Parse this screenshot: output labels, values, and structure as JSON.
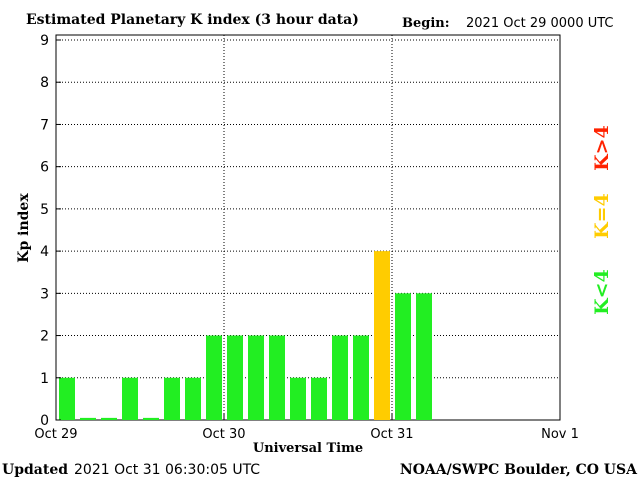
{
  "chart_data": {
    "type": "bar",
    "title": "Estimated Planetary K index (3 hour data)",
    "begin_label": "Begin:",
    "begin_value": "2021 Oct 29 0000 UTC",
    "xlabel": "Universal Time",
    "ylabel": "Kp index",
    "ylim": [
      0,
      9
    ],
    "yticks": [
      "0",
      "1",
      "2",
      "3",
      "4",
      "5",
      "6",
      "7",
      "8",
      "9"
    ],
    "xticks": [
      "Oct 29",
      "Oct 30",
      "Oct 31",
      "Nov 1"
    ],
    "bins_per_day": 8,
    "days": 3,
    "values": [
      1,
      0.05,
      0.05,
      1,
      0.05,
      1,
      1,
      2,
      2,
      2,
      2,
      1,
      1,
      2,
      2,
      4,
      3,
      3
    ],
    "colors": {
      "below": "#22ee22",
      "equal": "#ffcc00",
      "above": "#ff2200",
      "grid": "#000000"
    },
    "legend": {
      "below": "K<4",
      "equal": "K=4",
      "above": "K>4"
    },
    "grid": true
  },
  "footer": {
    "updated_label": "Updated",
    "updated_value": "2021 Oct 31 06:30:05 UTC",
    "source": "NOAA/SWPC Boulder, CO USA"
  }
}
